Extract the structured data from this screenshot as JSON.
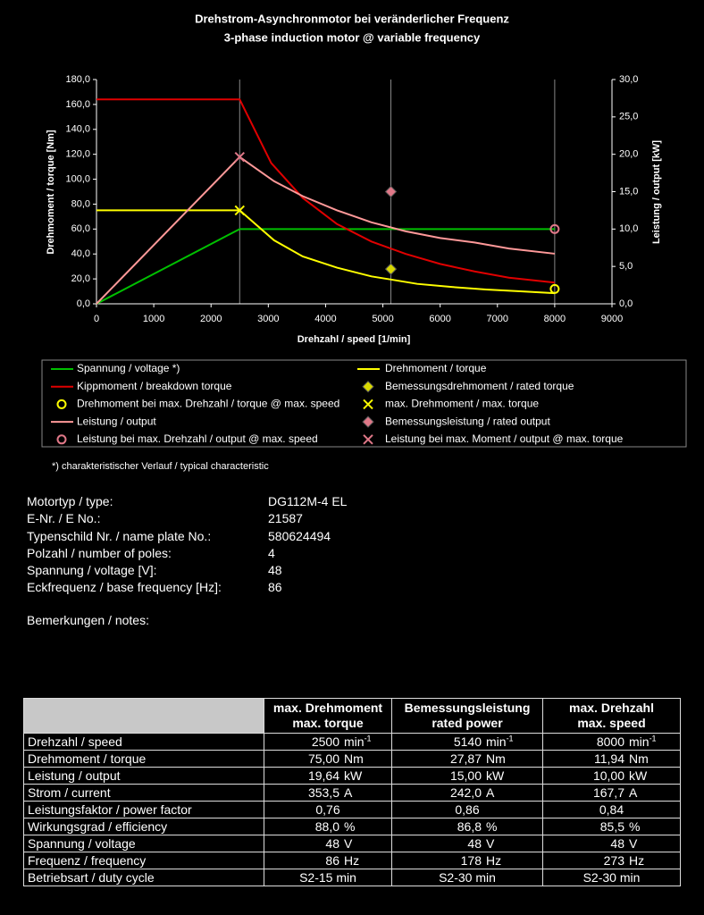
{
  "chart_data": {
    "type": "line",
    "title": "Drehstrom-Asynchronmotor bei veränderlicher Frequenz",
    "subtitle": "3-phase induction motor @ variable frequency",
    "x_label": "Drehzahl / speed [1/min]",
    "y_label": "Drehmoment / torque [Nm]",
    "y2_label": "Leistung / output [kW]",
    "xlim": [
      0,
      9000
    ],
    "xticks": [
      0,
      1000,
      2000,
      3000,
      4000,
      5000,
      6000,
      7000,
      8000,
      9000
    ],
    "ylim": [
      0,
      180
    ],
    "yticks": [
      {
        "value": 0,
        "label": "0,0"
      },
      {
        "value": 20,
        "label": "20,0"
      },
      {
        "value": 40,
        "label": "40,0"
      },
      {
        "value": 60,
        "label": "60,0"
      },
      {
        "value": 80,
        "label": "80,0"
      },
      {
        "value": 100,
        "label": "100,0"
      },
      {
        "value": 120,
        "label": "120,0"
      },
      {
        "value": 140,
        "label": "140,0"
      },
      {
        "value": 160,
        "label": "160,0"
      },
      {
        "value": 180,
        "label": "180,0"
      }
    ],
    "y2lim": [
      0,
      30
    ],
    "y2ticks": [
      {
        "value": 0,
        "label": "0,0"
      },
      {
        "value": 5,
        "label": "5,0"
      },
      {
        "value": 10,
        "label": "10,0"
      },
      {
        "value": 15,
        "label": "15,0"
      },
      {
        "value": 20,
        "label": "20,0"
      },
      {
        "value": 25,
        "label": "25,0"
      },
      {
        "value": 30,
        "label": "30,0"
      }
    ],
    "vlines": [
      2500,
      5140,
      8000
    ],
    "series": [
      {
        "name": "Spannung / voltage *)",
        "color": "#00c000",
        "x": [
          0,
          2500,
          8000
        ],
        "values": [
          0,
          60,
          60
        ]
      },
      {
        "name": "Drehmoment / torque",
        "color": "#ffff00",
        "x": [
          0,
          2500,
          3100,
          3600,
          4200,
          4800,
          5140,
          5600,
          6200,
          6800,
          7400,
          8000
        ],
        "values": [
          75,
          75,
          51,
          38,
          29,
          22,
          19.5,
          16,
          13.5,
          11.5,
          10,
          8.5
        ]
      },
      {
        "name": "Kippmoment / breakdown torque",
        "color": "#e00000",
        "x": [
          0,
          2500,
          3050,
          3600,
          4200,
          4800,
          5400,
          6000,
          6600,
          7200,
          8000
        ],
        "values": [
          164,
          164,
          113,
          85,
          64,
          50,
          40,
          32,
          26,
          21,
          17
        ]
      },
      {
        "name": "Bemessungsdrehmoment / rated torque",
        "color": "#d8d800",
        "marker": "diamond",
        "x": [
          5140
        ],
        "values": [
          27.87
        ]
      },
      {
        "name": "Drehmoment bei max. Drehzahl / torque @ max. speed",
        "color": "#ffff00",
        "marker": "circle",
        "x": [
          8000
        ],
        "values": [
          11.94
        ]
      },
      {
        "name": "max. Drehmoment / max. torque",
        "color": "#ffff00",
        "marker": "x",
        "x": [
          2500
        ],
        "values": [
          75
        ]
      },
      {
        "name": "Leistung / output",
        "color": "#ff9999",
        "axis": "y2",
        "x": [
          0,
          2500,
          3100,
          3600,
          4200,
          4800,
          5400,
          6000,
          6600,
          7200,
          8000
        ],
        "values": [
          0,
          19.64,
          16.4,
          14.4,
          12.5,
          10.9,
          9.7,
          8.8,
          8.2,
          7.4,
          6.7
        ]
      },
      {
        "name": "Bemessungsleistung / rated output",
        "color": "#e07888",
        "marker": "diamond",
        "axis": "y2",
        "x": [
          5140
        ],
        "values": [
          15
        ]
      },
      {
        "name": "Leistung bei max. Drehzahl / output @ max. speed",
        "color": "#e07888",
        "marker": "circle",
        "axis": "y2",
        "x": [
          8000
        ],
        "values": [
          10
        ]
      },
      {
        "name": "Leistung bei max. Moment / output @ max. torque",
        "color": "#e07888",
        "marker": "x",
        "axis": "y2",
        "x": [
          2500
        ],
        "values": [
          19.64
        ]
      }
    ],
    "footnote": "*) charakteristischer Verlauf / typical characteristic"
  },
  "motor_info": [
    {
      "label": "Motortyp / type:",
      "value": "DG112M-4 EL"
    },
    {
      "label": "E-Nr. / E No.:",
      "value": 21587
    },
    {
      "label": "Typenschild Nr. / name plate No.:",
      "value": 580624494
    },
    {
      "label": "Polzahl / number of poles:",
      "value": 4
    },
    {
      "label": "Spannung / voltage [V]:",
      "value": 48
    },
    {
      "label": "Eckfrequenz / base frequency [Hz]:",
      "value": 86
    }
  ],
  "notes": "Bemerkungen / notes:",
  "table": {
    "columns": [
      {
        "line1": "max. Drehmoment",
        "line2": "max. torque"
      },
      {
        "line1": "Bemessungsleistung",
        "line2": "rated power"
      },
      {
        "line1": "max. Drehzahl",
        "line2": "max. speed"
      }
    ],
    "rows": [
      {
        "label": "Drehzahl / speed",
        "unit": "min",
        "unit_sup": "-1",
        "values": [
          "2500",
          "5140",
          "8000"
        ]
      },
      {
        "label": "Drehmoment / torque",
        "unit": "Nm",
        "values": [
          "75,00",
          "27,87",
          "11,94"
        ]
      },
      {
        "label": "Leistung / output",
        "unit": "kW",
        "values": [
          "19,64",
          "15,00",
          "10,00"
        ]
      },
      {
        "label": "Strom / current",
        "unit": "A",
        "values": [
          "353,5",
          "242,0",
          "167,7"
        ]
      },
      {
        "label": "Leistungsfaktor / power factor",
        "values": [
          "0,76",
          "0,86",
          "0,84"
        ]
      },
      {
        "label": "Wirkungsgrad / efficiency",
        "unit": "%",
        "values": [
          "88,0",
          "86,8",
          "85,5"
        ]
      },
      {
        "label": "Spannung / voltage",
        "unit": "V",
        "values": [
          "48",
          "48",
          "48"
        ]
      },
      {
        "label": "Frequenz / frequency",
        "unit": "Hz",
        "values": [
          "86",
          "178",
          "273"
        ]
      },
      {
        "label": "Betriebsart / duty cycle",
        "values": [
          "S2-15 min",
          "S2-30 min",
          "S2-30 min"
        ]
      }
    ]
  }
}
